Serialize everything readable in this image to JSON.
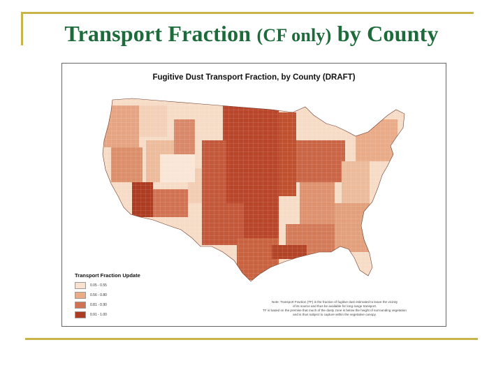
{
  "slide": {
    "title_part1": "Transport Fraction",
    "title_part2": "(CF only)",
    "title_part3": "by County"
  },
  "map": {
    "title": "Fugitive Dust Transport Fraction, by County (DRAFT)",
    "legend": {
      "title": "Transport Fraction Update",
      "items": [
        {
          "label": "0.05 - 0.55",
          "color": "#f8e1cf"
        },
        {
          "label": "0.56 - 0.80",
          "color": "#e9ab88"
        },
        {
          "label": "0.81 - 0.90",
          "color": "#d17352"
        },
        {
          "label": "0.91 - 1.00",
          "color": "#ad3c22"
        }
      ]
    },
    "footnote_lines": [
      "Note: Transport Fraction (TF) is the fraction of fugitive dust estimated to leave the vicinity",
      "of its source and thus be available for long-range transport.",
      "TF is based on the premise that much of the dusty zone is below the height of surrounding vegetation",
      "and is thus subject to capture within the vegetative canopy."
    ]
  }
}
